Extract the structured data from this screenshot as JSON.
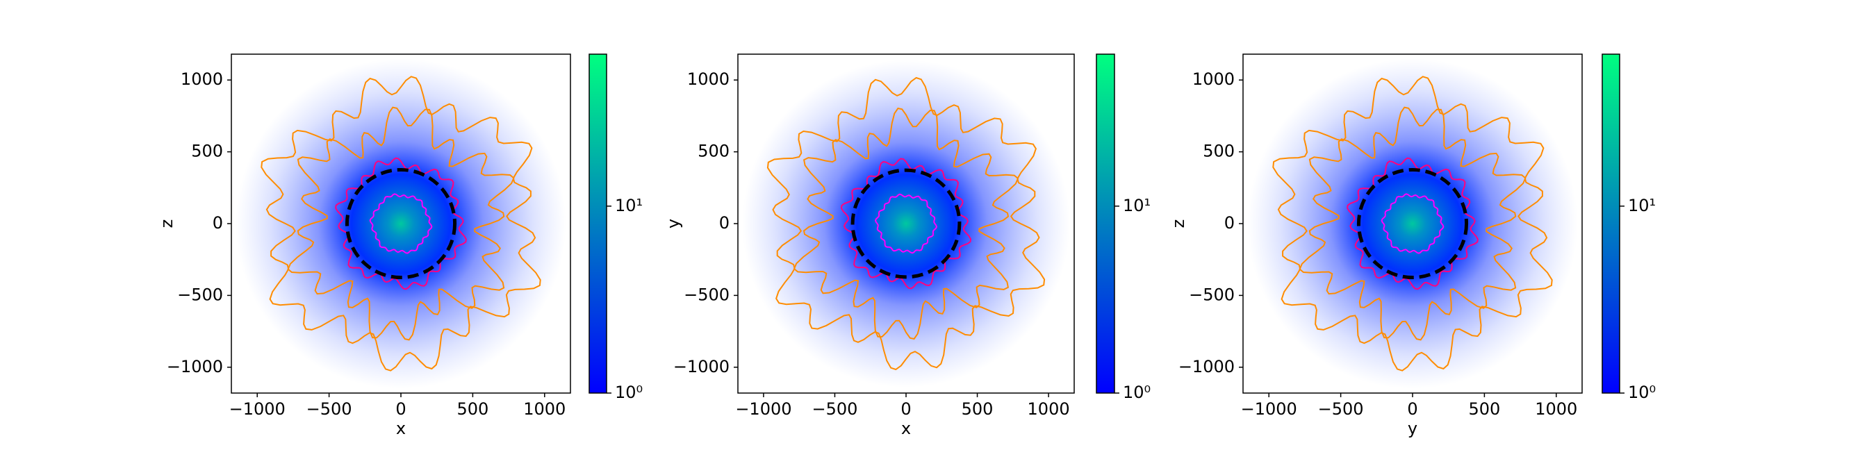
{
  "chart_data": [
    {
      "type": "hist2d",
      "xlabel": "x",
      "ylabel": "z",
      "xlim": [
        -1180,
        1180
      ],
      "ylim": [
        -1180,
        1180
      ],
      "xticks": [
        {
          "value": -1000,
          "label": "−1000"
        },
        {
          "value": -500,
          "label": "−500"
        },
        0,
        500,
        1000
      ],
      "yticks": [
        {
          "value": -1000,
          "label": "−1000"
        },
        {
          "value": -500,
          "label": "−500"
        },
        0,
        500,
        1000
      ],
      "circle_radius": 375,
      "colorbar": {
        "log": true,
        "lim": [
          1,
          65
        ],
        "colors": [
          "#0000ff",
          "#00ff80"
        ],
        "ticks": [
          {
            "value": 1,
            "label": "10⁰"
          },
          {
            "value": 10,
            "label": "10¹"
          }
        ]
      }
    },
    {
      "type": "hist2d",
      "xlabel": "x",
      "ylabel": "y",
      "xlim": [
        -1180,
        1180
      ],
      "ylim": [
        -1180,
        1180
      ],
      "xticks": [
        {
          "value": -1000,
          "label": "−1000"
        },
        {
          "value": -500,
          "label": "−500"
        },
        0,
        500,
        1000
      ],
      "yticks": [
        {
          "value": -1000,
          "label": "−1000"
        },
        {
          "value": -500,
          "label": "−500"
        },
        0,
        500,
        1000
      ],
      "circle_radius": 375,
      "colorbar": {
        "log": true,
        "lim": [
          1,
          65
        ],
        "colors": [
          "#0000ff",
          "#00ff80"
        ],
        "ticks": [
          {
            "value": 1,
            "label": "10⁰"
          },
          {
            "value": 10,
            "label": "10¹"
          }
        ]
      }
    },
    {
      "type": "hist2d",
      "xlabel": "y",
      "ylabel": "z",
      "xlim": [
        -1180,
        1180
      ],
      "ylim": [
        -1180,
        1180
      ],
      "xticks": [
        {
          "value": -1000,
          "label": "−1000"
        },
        {
          "value": -500,
          "label": "−500"
        },
        0,
        500,
        1000
      ],
      "yticks": [
        {
          "value": -1000,
          "label": "−1000"
        },
        {
          "value": -500,
          "label": "−500"
        },
        0,
        500,
        1000
      ],
      "circle_radius": 375,
      "colorbar": {
        "log": true,
        "lim": [
          1,
          65
        ],
        "colors": [
          "#0000ff",
          "#00ff80"
        ],
        "ticks": [
          {
            "value": 1,
            "label": "10⁰"
          },
          {
            "value": 10,
            "label": "10¹"
          }
        ]
      }
    }
  ]
}
